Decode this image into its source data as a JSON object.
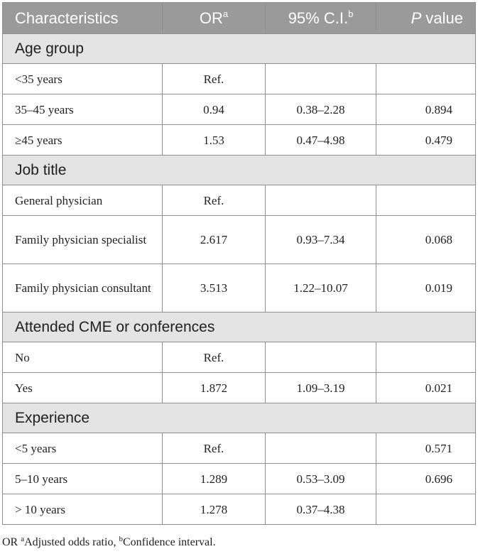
{
  "header": {
    "characteristics": "Characteristics",
    "or": "OR",
    "or_sup": "a",
    "ci": "95% C.I.",
    "ci_sup": "b",
    "p_italic": "P",
    "p_rest": " value"
  },
  "sections": [
    {
      "title": "Age group",
      "rows": [
        {
          "label": "<35 years",
          "or": "Ref.",
          "ci": "",
          "p": ""
        },
        {
          "label": "35–45 years",
          "or": "0.94",
          "ci": "0.38–2.28",
          "p": "0.894"
        },
        {
          "label": "≥45 years",
          "or": "1.53",
          "ci": "0.47–4.98",
          "p": "0.479"
        }
      ]
    },
    {
      "title": "Job title",
      "rows": [
        {
          "label": "General physician",
          "or": "Ref.",
          "ci": "",
          "p": ""
        },
        {
          "label": "Family physician specialist",
          "or": "2.617",
          "ci": "0.93–7.34",
          "p": "0.068"
        },
        {
          "label": "Family physician consultant",
          "or": "3.513",
          "ci": "1.22–10.07",
          "p": "0.019"
        }
      ]
    },
    {
      "title": "Attended CME or conferences",
      "rows": [
        {
          "label": "No",
          "or": "Ref.",
          "ci": "",
          "p": ""
        },
        {
          "label": "Yes",
          "or": "1.872",
          "ci": "1.09–3.19",
          "p": "0.021"
        }
      ]
    },
    {
      "title": "Experience",
      "rows": [
        {
          "label": "<5 years",
          "or": "Ref.",
          "ci": "",
          "p": "0.571"
        },
        {
          "label": "5–10 years",
          "or": "1.289",
          "ci": "0.53–3.09",
          "p": "0.696"
        },
        {
          "label": "> 10 years",
          "or": "1.278",
          "ci": "0.37–4.38",
          "p": ""
        }
      ]
    }
  ],
  "footnote": {
    "prefix": "OR ",
    "sup_a": "a",
    "text_a": "Adjusted odds ratio, ",
    "sup_b": "b",
    "text_b": "Confidence interval."
  }
}
